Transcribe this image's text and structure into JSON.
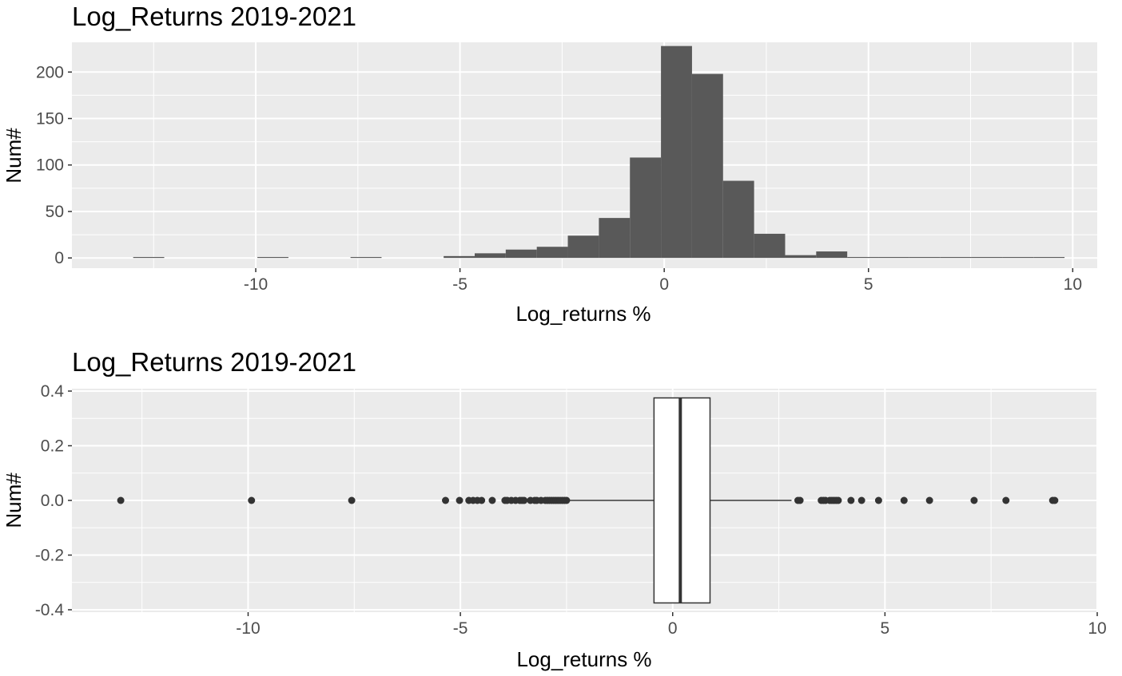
{
  "chart_data": [
    {
      "type": "histogram",
      "title": "Log_Returns 2019-2021",
      "xlabel": "Log_returns %",
      "ylabel": "Num#",
      "xlim": [
        -14.5,
        10.6
      ],
      "ylim": [
        -11,
        232
      ],
      "x_ticks": [
        -10,
        -5,
        0,
        5,
        10
      ],
      "x_tick_labels": [
        "-10",
        "-5",
        "0",
        "5",
        "10"
      ],
      "y_ticks": [
        0,
        50,
        100,
        150,
        200
      ],
      "y_tick_labels": [
        "0",
        "50",
        "100",
        "150",
        "200"
      ],
      "bar_color": "#595959",
      "panel_background": "#ebebeb",
      "grid": true,
      "bins": [
        {
          "x0": -13.0,
          "x1": -12.24,
          "count": 1
        },
        {
          "x0": -9.96,
          "x1": -9.2,
          "count": 1
        },
        {
          "x0": -7.68,
          "x1": -6.92,
          "count": 1
        },
        {
          "x0": -5.4,
          "x1": -4.64,
          "count": 2
        },
        {
          "x0": -4.64,
          "x1": -3.88,
          "count": 5
        },
        {
          "x0": -3.88,
          "x1": -3.12,
          "count": 9
        },
        {
          "x0": -3.12,
          "x1": -2.36,
          "count": 12
        },
        {
          "x0": -2.36,
          "x1": -1.6,
          "count": 24
        },
        {
          "x0": -1.6,
          "x1": -0.84,
          "count": 43
        },
        {
          "x0": -0.84,
          "x1": -0.08,
          "count": 108
        },
        {
          "x0": -0.08,
          "x1": 0.68,
          "count": 228
        },
        {
          "x0": 0.68,
          "x1": 1.44,
          "count": 198
        },
        {
          "x0": 1.44,
          "x1": 2.2,
          "count": 83
        },
        {
          "x0": 2.2,
          "x1": 2.96,
          "count": 26
        },
        {
          "x0": 2.96,
          "x1": 3.72,
          "count": 3
        },
        {
          "x0": 3.72,
          "x1": 4.48,
          "count": 7
        },
        {
          "x0": 4.48,
          "x1": 5.24,
          "count": 1
        },
        {
          "x0": 5.24,
          "x1": 6.0,
          "count": 1
        },
        {
          "x0": 6.0,
          "x1": 6.76,
          "count": 1
        },
        {
          "x0": 6.76,
          "x1": 7.52,
          "count": 1
        },
        {
          "x0": 7.52,
          "x1": 8.28,
          "count": 1
        },
        {
          "x0": 8.28,
          "x1": 9.04,
          "count": 1
        },
        {
          "x0": 9.04,
          "x1": 9.8,
          "count": 1
        }
      ]
    },
    {
      "type": "boxplot",
      "title": "Log_Returns 2019-2021",
      "xlabel": "Log_returns %",
      "ylabel": "Num#",
      "xlim": [
        -14.15,
        10.0
      ],
      "ylim": [
        -0.4,
        0.4
      ],
      "x_ticks": [
        -10,
        -5,
        0,
        5,
        10
      ],
      "x_tick_labels": [
        "-10",
        "-5",
        "0",
        "5",
        "10"
      ],
      "y_ticks": [
        -0.4,
        -0.2,
        0.0,
        0.2,
        0.4
      ],
      "y_tick_labels": [
        "-0.4",
        "-0.2",
        "0.0",
        "0.2",
        "0.4"
      ],
      "panel_background": "#ebebeb",
      "grid": true,
      "box": {
        "y": 0.0,
        "half_width": 0.375,
        "q1": -0.44,
        "median": 0.18,
        "q3": 0.88,
        "whisker_low": -2.45,
        "whisker_high": 2.8,
        "fill": "#ffffff",
        "stroke": "#333333"
      },
      "outliers": [
        -13.0,
        -9.92,
        -7.56,
        -5.35,
        -5.02,
        -4.8,
        -4.7,
        -4.6,
        -4.5,
        -4.25,
        -3.95,
        -3.9,
        -3.8,
        -3.7,
        -3.6,
        -3.55,
        -3.5,
        -3.35,
        -3.25,
        -3.2,
        -3.1,
        -3.0,
        -2.95,
        -2.9,
        -2.85,
        -2.8,
        -2.75,
        -2.7,
        -2.65,
        -2.6,
        -2.55,
        -2.5,
        2.95,
        3.0,
        3.5,
        3.55,
        3.6,
        3.7,
        3.75,
        3.8,
        3.85,
        3.9,
        4.2,
        4.45,
        4.85,
        5.45,
        6.05,
        7.1,
        7.85,
        8.95,
        9.0
      ],
      "outlier_color": "#333333"
    }
  ]
}
